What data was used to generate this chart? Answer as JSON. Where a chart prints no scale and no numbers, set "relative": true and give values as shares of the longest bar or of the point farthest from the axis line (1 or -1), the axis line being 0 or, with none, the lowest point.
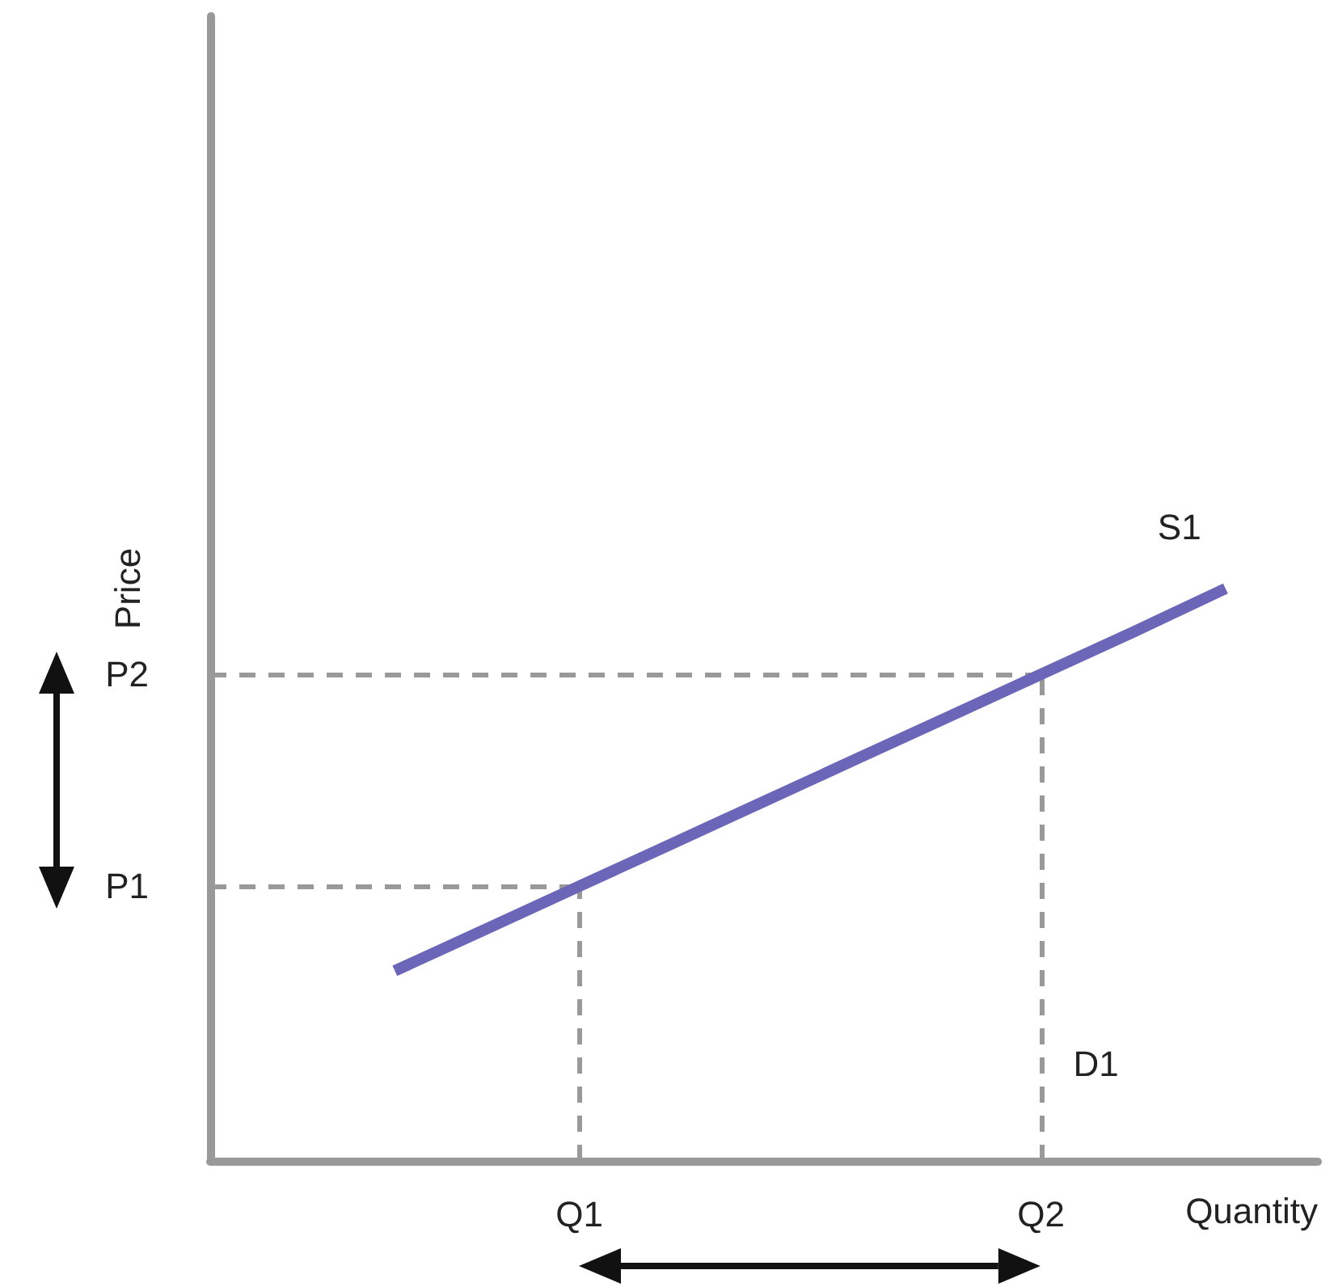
{
  "chart_data": {
    "type": "line",
    "xlabel": "Quantity",
    "ylabel": "Price",
    "relative": true,
    "categories": [
      null,
      null,
      null,
      null,
      "Q1",
      null,
      null,
      null,
      null,
      "Q2",
      null,
      null,
      null
    ],
    "series": [
      {
        "name": "S1",
        "color": "#6b66b8",
        "values": [
          null,
          null,
          0.332,
          0.406,
          0.48,
          0.554,
          0.628,
          0.702,
          0.776,
          0.85,
          0.924,
          1,
          null
        ]
      }
    ],
    "ref_lines": [
      {
        "axis": "y",
        "value": 0.48,
        "label": "P1",
        "color": "#999999",
        "line_style": "dashed"
      },
      {
        "axis": "y",
        "value": 0.85,
        "label": "P2",
        "color": "#999999",
        "line_style": "dashed"
      },
      {
        "axis": "x",
        "value": "Q1",
        "color": "#999999",
        "line_style": "dashed"
      },
      {
        "axis": "x",
        "value": "Q2",
        "color": "#999999",
        "line_style": "dashed"
      }
    ],
    "annotations": [
      {
        "text": "D1",
        "x": "Q2",
        "y": 0.17
      }
    ],
    "marker": "none",
    "grid": false,
    "legend": false
  }
}
